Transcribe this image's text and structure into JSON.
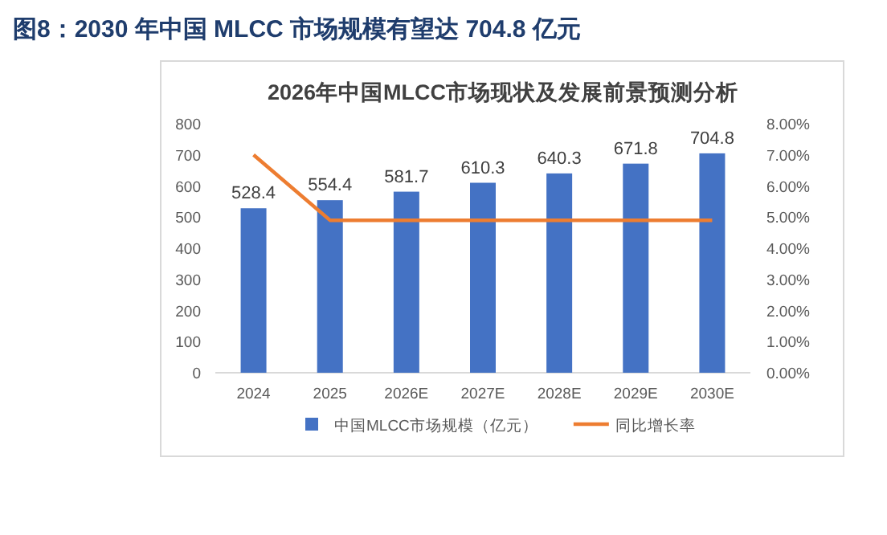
{
  "chart_data": {
    "type": "bar",
    "title": "图8：2030 年中国 MLCC 市场规模有望达 704.8 亿元",
    "subtitle": "2026年中国MLCC市场现状及发展前景预测分析",
    "categories": [
      "2024",
      "2025",
      "2026E",
      "2027E",
      "2028E",
      "2029E",
      "2030E"
    ],
    "series": [
      {
        "name": "中国MLCC市场规模（亿元）",
        "color": "#4472c4",
        "values": [
          528.4,
          554.4,
          581.7,
          610.3,
          640.3,
          671.8,
          704.8
        ],
        "value_labels": [
          "528.4",
          "554.4",
          "581.7",
          "610.3",
          "640.3",
          "671.8",
          "704.8"
        ]
      },
      {
        "name": "同比增长率",
        "type": "line",
        "axis": "y2",
        "color": "#ed7d31",
        "marker": "none",
        "values": [
          7.0,
          4.9,
          4.9,
          4.9,
          4.9,
          4.9,
          4.9
        ]
      }
    ],
    "ylim": [
      0,
      800
    ],
    "yticks": [
      0,
      100,
      200,
      300,
      400,
      500,
      600,
      700,
      800
    ],
    "y2lim": [
      0,
      8
    ],
    "y2ticks": [
      {
        "value": 0,
        "label": "0.00%"
      },
      {
        "value": 1,
        "label": "1.00%"
      },
      {
        "value": 2,
        "label": "2.00%"
      },
      {
        "value": 3,
        "label": "3.00%"
      },
      {
        "value": 4,
        "label": "4.00%"
      },
      {
        "value": 5,
        "label": "5.00%"
      },
      {
        "value": 6,
        "label": "6.00%"
      },
      {
        "value": 7,
        "label": "7.00%"
      },
      {
        "value": 8,
        "label": "8.00%"
      }
    ],
    "grid": false,
    "legend": "bottom"
  }
}
